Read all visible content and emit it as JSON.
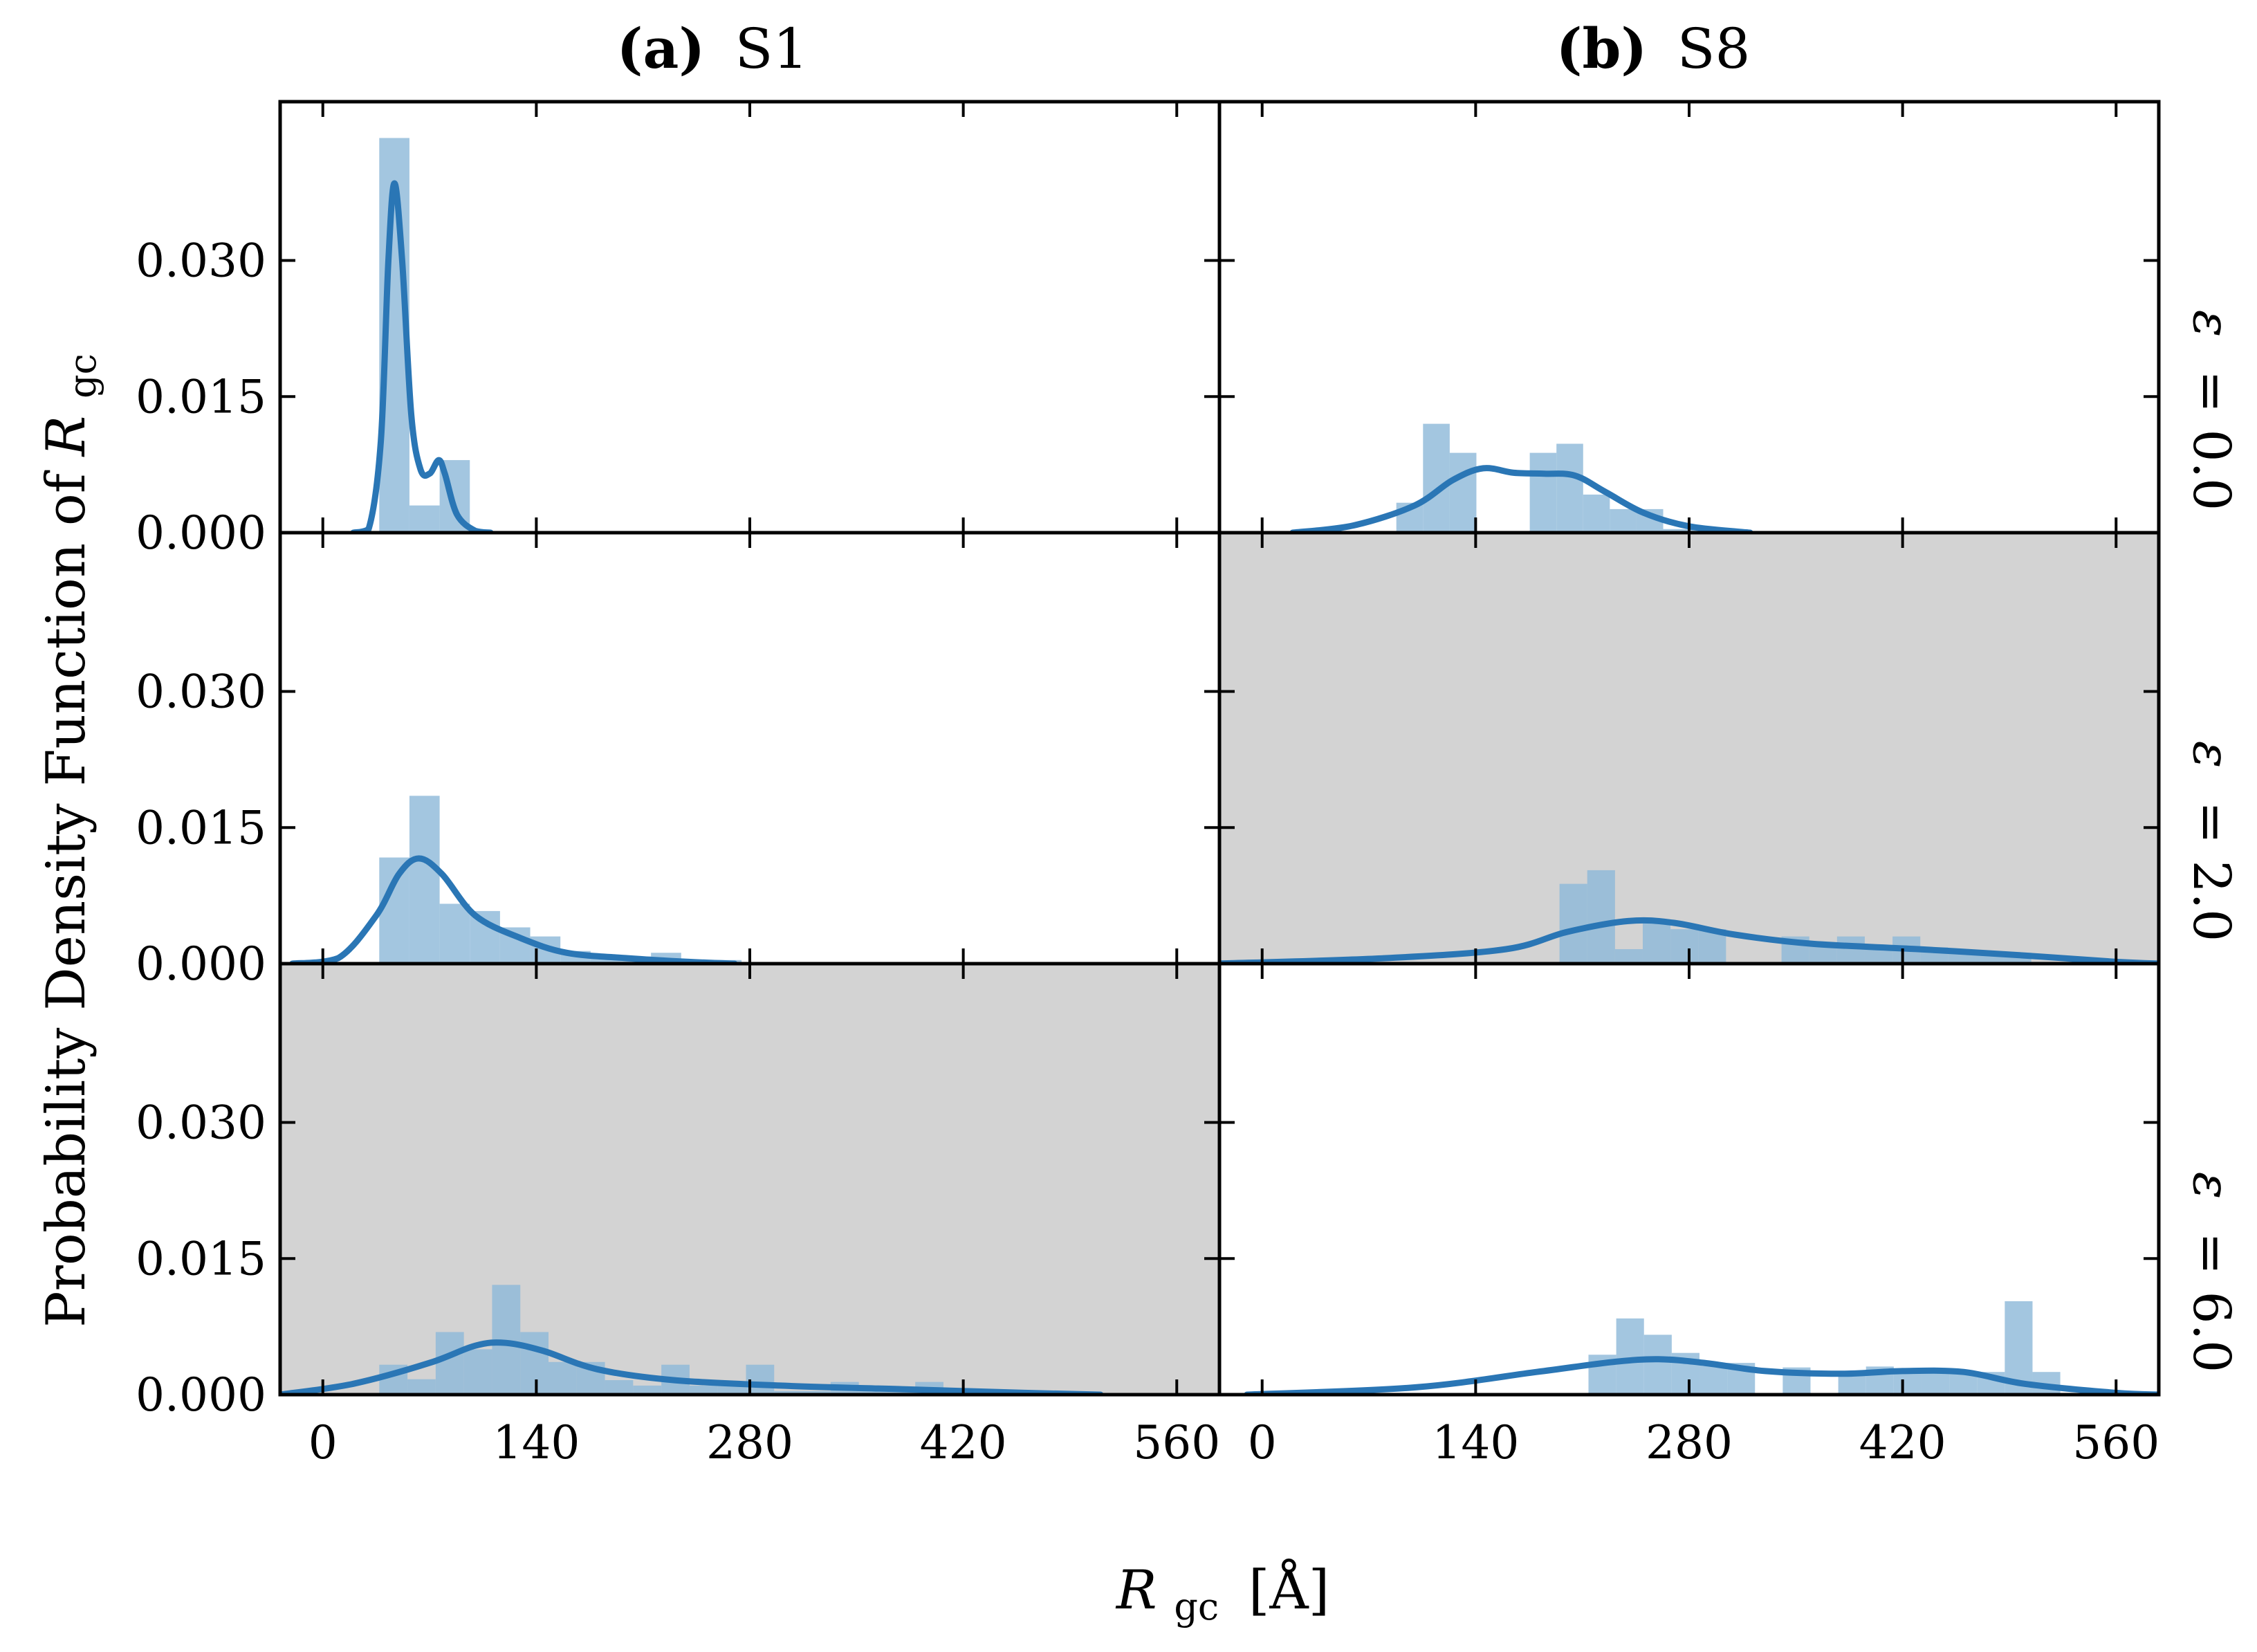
{
  "chart_data": {
    "type": "histogram-grid",
    "ylabel_prefix": "Probability Density Function of ",
    "ylabel_var": "R",
    "ylabel_sub": "gc",
    "xlabel_var": "R",
    "xlabel_sub": "gc",
    "xlabel_unit": "[Å]",
    "columns": [
      {
        "key": "a",
        "bold": "(a)",
        "name": "S1"
      },
      {
        "key": "b",
        "bold": "(b)",
        "name": "S8"
      }
    ],
    "rows": [
      {
        "symbol": "ε",
        "label": "ε = 0.0",
        "value": "= 0.0"
      },
      {
        "symbol": "ε",
        "label": "ε = 2.0",
        "value": "= 2.0"
      },
      {
        "symbol": "ε",
        "label": "ε = 6.0",
        "value": "= 6.0"
      }
    ],
    "xlim": [
      -28,
      588
    ],
    "ylim": [
      0,
      0.0475
    ],
    "xticks": [
      0,
      140,
      280,
      420,
      560
    ],
    "xtick_labels": [
      "0",
      "140",
      "280",
      "420",
      "560"
    ],
    "yticks": [
      0,
      0.015,
      0.03
    ],
    "ytick_labels": [
      "0.000",
      "0.015",
      "0.030"
    ],
    "bar_color": "#8fbad9",
    "line_color": "#2a76b5",
    "highlight_bg": "#d3d3d3",
    "panels": [
      {
        "row": 0,
        "col": 0,
        "highlighted": false,
        "bins": {
          "start": 37,
          "width": 19.8,
          "values": [
            0.0435,
            0.003,
            0.008
          ]
        },
        "kde": [
          [
            20,
            0
          ],
          [
            30,
            0.0004
          ],
          [
            38,
            0.01
          ],
          [
            43,
            0.03
          ],
          [
            47,
            0.0385
          ],
          [
            52,
            0.03
          ],
          [
            58,
            0.013
          ],
          [
            64,
            0.007
          ],
          [
            70,
            0.0065
          ],
          [
            76,
            0.008
          ],
          [
            80,
            0.0065
          ],
          [
            88,
            0.002
          ],
          [
            100,
            0.0002
          ],
          [
            110,
            0
          ]
        ]
      },
      {
        "row": 0,
        "col": 1,
        "highlighted": false,
        "bins": {
          "start": 88,
          "width": 17.5,
          "values": [
            0.0033,
            0.012,
            0.0088,
            0,
            0,
            0.0088,
            0.0098,
            0.0042,
            0.0026,
            0.0026,
            0.0004,
            0.0004
          ]
        },
        "kde": [
          [
            20,
            0
          ],
          [
            60,
            0.0008
          ],
          [
            100,
            0.003
          ],
          [
            125,
            0.0058
          ],
          [
            145,
            0.0071
          ],
          [
            165,
            0.0066
          ],
          [
            185,
            0.0065
          ],
          [
            205,
            0.0063
          ],
          [
            225,
            0.0045
          ],
          [
            250,
            0.0022
          ],
          [
            280,
            0.0007
          ],
          [
            320,
            0
          ]
        ]
      },
      {
        "row": 1,
        "col": 0,
        "highlighted": false,
        "bins": {
          "start": 37,
          "width": 19.8,
          "values": [
            0.0117,
            0.0185,
            0.0066,
            0.0058,
            0.004,
            0.003,
            0.0014,
            0.0008,
            0.0008,
            0.0012,
            0.0004,
            0.0004
          ]
        },
        "kde": [
          [
            -20,
            0
          ],
          [
            10,
            0.0006
          ],
          [
            35,
            0.0053
          ],
          [
            50,
            0.0099
          ],
          [
            63,
            0.0116
          ],
          [
            78,
            0.0099
          ],
          [
            100,
            0.0053
          ],
          [
            130,
            0.0028
          ],
          [
            160,
            0.0012
          ],
          [
            200,
            0.0006
          ],
          [
            240,
            0.0002
          ],
          [
            270,
            0
          ]
        ]
      },
      {
        "row": 1,
        "col": 1,
        "highlighted": true,
        "bins": {
          "start": 195,
          "width": 18.2,
          "values": [
            0.0088,
            0.0103,
            0.0016,
            0.0048,
            0.0038,
            0.0038,
            0,
            0,
            0.003,
            0.002,
            0.003,
            0.002,
            0.003,
            0.0018,
            0.0012,
            0.0012,
            0.0012
          ]
        },
        "kde": [
          [
            -30,
            0
          ],
          [
            80,
            0.0006
          ],
          [
            160,
            0.0016
          ],
          [
            200,
            0.0035
          ],
          [
            240,
            0.0047
          ],
          [
            270,
            0.0045
          ],
          [
            310,
            0.0032
          ],
          [
            360,
            0.0022
          ],
          [
            430,
            0.0016
          ],
          [
            500,
            0.0009
          ],
          [
            560,
            0.0002
          ],
          [
            590,
            0
          ]
        ]
      },
      {
        "row": 2,
        "col": 0,
        "highlighted": true,
        "bins": {
          "start": 37,
          "width": 18.5,
          "values": [
            0.0033,
            0.0017,
            0.0069,
            0.005,
            0.0121,
            0.0069,
            0.0036,
            0.0036,
            0.0016,
            0.001,
            0.0033,
            0.001,
            0.001,
            0.0033,
            0.0004,
            0.0004,
            0.0014,
            0.0004,
            0.0004,
            0.0014,
            0.0004,
            0.0004
          ]
        },
        "kde": [
          [
            -28,
            0
          ],
          [
            20,
            0.0012
          ],
          [
            70,
            0.0035
          ],
          [
            100,
            0.0054
          ],
          [
            120,
            0.0057
          ],
          [
            145,
            0.0048
          ],
          [
            180,
            0.0028
          ],
          [
            230,
            0.0016
          ],
          [
            300,
            0.001
          ],
          [
            380,
            0.0006
          ],
          [
            460,
            0.0002
          ],
          [
            510,
            0
          ]
        ]
      },
      {
        "row": 2,
        "col": 1,
        "highlighted": false,
        "bins": {
          "start": 214,
          "width": 18.2,
          "values": [
            0.0044,
            0.0084,
            0.0066,
            0.0046,
            0.0035,
            0.0035,
            0,
            0.003,
            0,
            0.0023,
            0.0031,
            0.0025,
            0.0025,
            0.0023,
            0.0025,
            0.0103,
            0.0025
          ]
        },
        "kde": [
          [
            -10,
            0
          ],
          [
            100,
            0.0008
          ],
          [
            180,
            0.0025
          ],
          [
            230,
            0.0036
          ],
          [
            260,
            0.0039
          ],
          [
            290,
            0.0035
          ],
          [
            330,
            0.0026
          ],
          [
            380,
            0.0023
          ],
          [
            420,
            0.0026
          ],
          [
            460,
            0.0025
          ],
          [
            500,
            0.0012
          ],
          [
            560,
            0.0002
          ],
          [
            588,
            0
          ]
        ]
      }
    ]
  }
}
